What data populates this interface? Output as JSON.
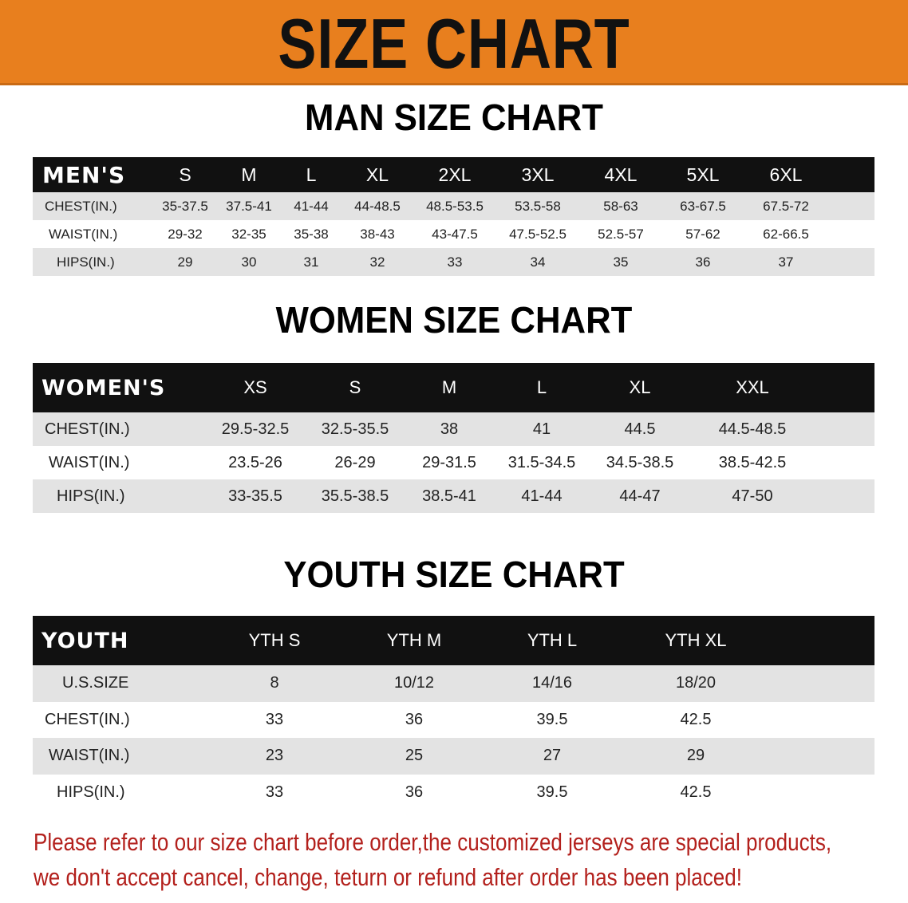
{
  "banner_title": "SIZE CHART",
  "men": {
    "title": "MAN SIZE CHART",
    "header": [
      "MEN'S",
      "S",
      "M",
      "L",
      "XL",
      "2XL",
      "3XL",
      "4XL",
      "5XL",
      "6XL"
    ],
    "rows": [
      [
        "CHEST(IN.)",
        "35-37.5",
        "37.5-41",
        "41-44",
        "44-48.5",
        "48.5-53.5",
        "53.5-58",
        "58-63",
        "63-67.5",
        "67.5-72"
      ],
      [
        "WAIST(IN.)",
        "29-32",
        "32-35",
        "35-38",
        "38-43",
        "43-47.5",
        "47.5-52.5",
        "52.5-57",
        "57-62",
        "62-66.5"
      ],
      [
        "HIPS(IN.)",
        "29",
        "30",
        "31",
        "32",
        "33",
        "34",
        "35",
        "36",
        "37"
      ]
    ]
  },
  "women": {
    "title": "WOMEN SIZE CHART",
    "header": [
      "WOMEN'S",
      "XS",
      "S",
      "M",
      "L",
      "XL",
      "XXL"
    ],
    "rows": [
      [
        "CHEST(IN.)",
        "29.5-32.5",
        "32.5-35.5",
        "38",
        "41",
        "44.5",
        "44.5-48.5"
      ],
      [
        "WAIST(IN.)",
        "23.5-26",
        "26-29",
        "29-31.5",
        "31.5-34.5",
        "34.5-38.5",
        "38.5-42.5"
      ],
      [
        "HIPS(IN.)",
        "33-35.5",
        "35.5-38.5",
        "38.5-41",
        "41-44",
        "44-47",
        "47-50"
      ]
    ]
  },
  "youth": {
    "title": "YOUTH SIZE CHART",
    "header": [
      "YOUTH",
      "YTH S",
      "YTH M",
      "YTH L",
      "YTH XL"
    ],
    "rows": [
      [
        "U.S.SIZE",
        "8",
        "10/12",
        "14/16",
        "18/20"
      ],
      [
        "CHEST(IN.)",
        "33",
        "36",
        "39.5",
        "42.5"
      ],
      [
        "WAIST(IN.)",
        "23",
        "25",
        "27",
        "29"
      ],
      [
        "HIPS(IN.)",
        "33",
        "36",
        "39.5",
        "42.5"
      ]
    ]
  },
  "note": {
    "line1": "Please refer to our size chart before order,the customized jerseys are special products,",
    "line2": "we don't accept cancel, change, teturn or refund after order has been placed!"
  },
  "colors": {
    "banner": "#e87f1e",
    "header_row": "#111111",
    "stripe": "#e3e3e3",
    "note": "#b3201c"
  }
}
